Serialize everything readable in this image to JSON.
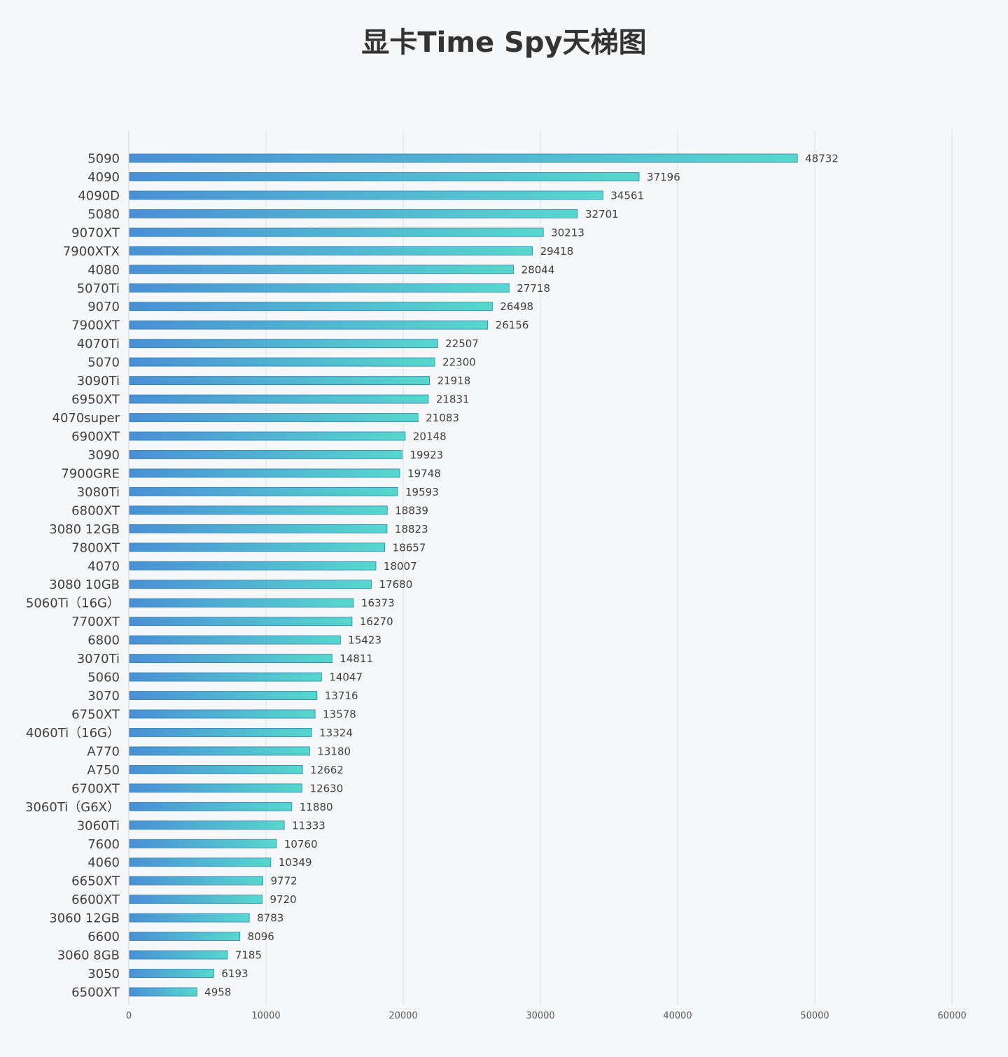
{
  "chart_data": {
    "type": "bar",
    "orientation": "horizontal",
    "title": "显卡Time Spy天梯图",
    "xlim": [
      0,
      60000
    ],
    "xticks": [
      0,
      10000,
      20000,
      30000,
      40000,
      50000,
      60000
    ],
    "grid": "vertical",
    "data_labels": true,
    "colors": {
      "bar_start": "#4a8fd6",
      "bar_end": "#56d8cd",
      "bar_border": "#2f7fb0",
      "grid": "#e0e0e0"
    },
    "categories": [
      "5090",
      "4090",
      "4090D",
      "5080",
      "9070XT",
      "7900XTX",
      "4080",
      "5070Ti",
      "9070",
      "7900XT",
      "4070Ti",
      "5070",
      "3090Ti",
      "6950XT",
      "4070super",
      "6900XT",
      "3090",
      "7900GRE",
      "3080Ti",
      "6800XT",
      "3080 12GB",
      "7800XT",
      "4070",
      "3080 10GB",
      "5060Ti（16G）",
      "7700XT",
      "6800",
      "3070Ti",
      "5060",
      "3070",
      "6750XT",
      "4060Ti（16G）",
      "A770",
      "A750",
      "6700XT",
      "3060Ti（G6X）",
      "3060Ti",
      "7600",
      "4060",
      "6650XT",
      "6600XT",
      "3060 12GB",
      "6600",
      "3060 8GB",
      "3050",
      "6500XT"
    ],
    "values": [
      48732,
      37196,
      34561,
      32701,
      30213,
      29418,
      28044,
      27718,
      26498,
      26156,
      22507,
      22300,
      21918,
      21831,
      21083,
      20148,
      19923,
      19748,
      19593,
      18839,
      18823,
      18657,
      18007,
      17680,
      16373,
      16270,
      15423,
      14811,
      14047,
      13716,
      13578,
      13324,
      13180,
      12662,
      12630,
      11880,
      11333,
      10760,
      10349,
      9772,
      9720,
      8783,
      8096,
      7185,
      6193,
      4958
    ]
  }
}
